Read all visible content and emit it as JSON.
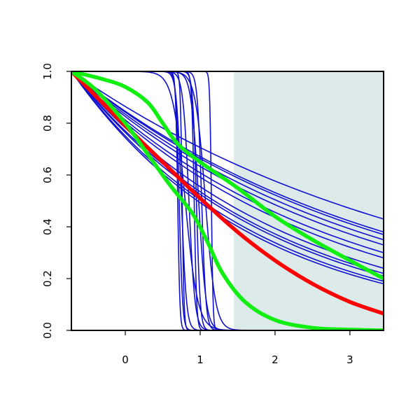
{
  "chart_data": {
    "type": "line",
    "title": "",
    "xlabel": "",
    "ylabel": "",
    "xlim": [
      -0.72,
      3.45
    ],
    "ylim": [
      0.0,
      1.0
    ],
    "x_ticks": [
      0,
      1,
      2,
      3
    ],
    "x_tick_labels": [
      "0",
      "1",
      "2",
      "3"
    ],
    "y_ticks": [
      0.0,
      0.2,
      0.4,
      0.6,
      0.8,
      1.0
    ],
    "y_tick_labels": [
      "0.0",
      "0.2",
      "0.4",
      "0.6",
      "0.8",
      "1.0"
    ],
    "grid": false,
    "shaded_region": {
      "x": [
        1.45,
        3.45
      ],
      "color": "#dceaea"
    },
    "colors": {
      "blue": "#1010d0",
      "red": "#ff0000",
      "green": "#11ee11",
      "axis": "#000000"
    },
    "series": [
      {
        "color": "blue",
        "family": "exp",
        "points": [
          [
            -0.72,
            1.0
          ],
          [
            3.45,
            0.43
          ]
        ]
      },
      {
        "color": "blue",
        "family": "exp",
        "points": [
          [
            -0.72,
            1.0
          ],
          [
            3.45,
            0.38
          ]
        ]
      },
      {
        "color": "blue",
        "family": "exp",
        "points": [
          [
            -0.72,
            1.0
          ],
          [
            3.45,
            0.37
          ]
        ]
      },
      {
        "color": "blue",
        "family": "exp",
        "points": [
          [
            -0.72,
            1.0
          ],
          [
            3.45,
            0.35
          ]
        ]
      },
      {
        "color": "blue",
        "family": "exp",
        "points": [
          [
            -0.72,
            1.0
          ],
          [
            3.45,
            0.33
          ]
        ]
      },
      {
        "color": "blue",
        "family": "exp",
        "points": [
          [
            -0.72,
            1.0
          ],
          [
            3.45,
            0.3
          ]
        ]
      },
      {
        "color": "blue",
        "family": "exp",
        "points": [
          [
            -0.72,
            1.0
          ],
          [
            3.45,
            0.28
          ]
        ]
      },
      {
        "color": "blue",
        "family": "exp",
        "points": [
          [
            -0.72,
            1.0
          ],
          [
            3.45,
            0.24
          ]
        ]
      },
      {
        "color": "blue",
        "family": "exp",
        "points": [
          [
            -0.72,
            1.0
          ],
          [
            3.45,
            0.22
          ]
        ]
      },
      {
        "color": "blue",
        "family": "exp",
        "points": [
          [
            -0.72,
            1.0
          ],
          [
            3.45,
            0.21
          ]
        ]
      },
      {
        "color": "blue",
        "family": "exp",
        "points": [
          [
            -0.72,
            1.0
          ],
          [
            3.45,
            0.19
          ]
        ]
      },
      {
        "color": "blue",
        "family": "exp",
        "points": [
          [
            -0.72,
            1.0
          ],
          [
            3.45,
            0.18
          ]
        ]
      },
      {
        "color": "blue",
        "family": "drop",
        "center": 0.7,
        "steep": 70
      },
      {
        "color": "blue",
        "family": "drop",
        "center": 0.72,
        "steep": 45
      },
      {
        "color": "blue",
        "family": "drop",
        "center": 0.75,
        "steep": 30
      },
      {
        "color": "blue",
        "family": "drop",
        "center": 0.76,
        "steep": 80
      },
      {
        "color": "blue",
        "family": "drop",
        "center": 0.8,
        "steep": 12
      },
      {
        "color": "blue",
        "family": "drop",
        "center": 0.85,
        "steep": 25
      },
      {
        "color": "blue",
        "family": "drop",
        "center": 0.92,
        "steep": 60
      },
      {
        "color": "blue",
        "family": "drop",
        "center": 0.95,
        "steep": 40
      },
      {
        "color": "blue",
        "family": "drop",
        "center": 0.98,
        "steep": 20
      },
      {
        "color": "blue",
        "family": "drop",
        "center": 1.02,
        "steep": 35
      },
      {
        "color": "blue",
        "family": "drop",
        "center": 1.07,
        "steep": 15
      },
      {
        "color": "blue",
        "family": "drop",
        "center": 1.15,
        "steep": 90
      },
      {
        "color": "red",
        "family": "points",
        "points": [
          [
            -0.72,
            1.0
          ],
          [
            0.0,
            0.79
          ],
          [
            0.5,
            0.65
          ],
          [
            1.0,
            0.51
          ],
          [
            1.5,
            0.38
          ],
          [
            2.0,
            0.27
          ],
          [
            2.5,
            0.18
          ],
          [
            3.0,
            0.11
          ],
          [
            3.45,
            0.065
          ]
        ]
      },
      {
        "color": "green",
        "family": "points",
        "points": [
          [
            -0.72,
            1.0
          ],
          [
            -0.3,
            0.97
          ],
          [
            0.0,
            0.94
          ],
          [
            0.3,
            0.88
          ],
          [
            0.5,
            0.8
          ],
          [
            0.7,
            0.72
          ],
          [
            1.0,
            0.65
          ],
          [
            1.5,
            0.55
          ],
          [
            2.0,
            0.44
          ],
          [
            2.5,
            0.35
          ],
          [
            3.0,
            0.27
          ],
          [
            3.45,
            0.2
          ]
        ]
      },
      {
        "color": "green",
        "family": "points",
        "points": [
          [
            -0.72,
            1.0
          ],
          [
            -0.4,
            0.93
          ],
          [
            0.0,
            0.8
          ],
          [
            0.3,
            0.68
          ],
          [
            0.6,
            0.56
          ],
          [
            0.9,
            0.45
          ],
          [
            1.1,
            0.34
          ],
          [
            1.3,
            0.22
          ],
          [
            1.6,
            0.11
          ],
          [
            2.0,
            0.04
          ],
          [
            2.5,
            0.01
          ],
          [
            3.0,
            0.003
          ],
          [
            3.45,
            0.0
          ]
        ]
      }
    ]
  }
}
